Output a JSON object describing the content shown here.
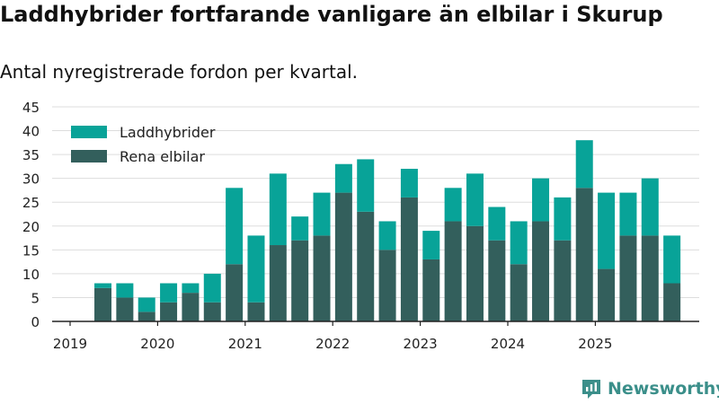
{
  "chart_data": {
    "type": "bar",
    "stacked": true,
    "title": "Laddhybrider fortfarande vanligare än elbilar i Skurup",
    "subtitle": "Antal nyregistrerade fordon per kvartal.",
    "xlabel": "",
    "ylabel": "",
    "ylim": [
      0,
      45
    ],
    "yticks": [
      0,
      5,
      10,
      15,
      20,
      25,
      30,
      35,
      40,
      45
    ],
    "xtick_labels": [
      "2019",
      "2020",
      "2021",
      "2022",
      "2023",
      "2024",
      "2025"
    ],
    "grid": true,
    "legend_position": "top-left",
    "categories": [
      "2019 Q2",
      "2019 Q3",
      "2019 Q4",
      "2020 Q1",
      "2020 Q2",
      "2020 Q3",
      "2020 Q4",
      "2021 Q1",
      "2021 Q2",
      "2021 Q3",
      "2021 Q4",
      "2022 Q1",
      "2022 Q2",
      "2022 Q3",
      "2022 Q4",
      "2023 Q1",
      "2023 Q2",
      "2023 Q3",
      "2023 Q4",
      "2024 Q1",
      "2024 Q2",
      "2024 Q3",
      "2024 Q4",
      "2025 Q1",
      "2025 Q2",
      "2025 Q3",
      "2025 Q4"
    ],
    "series": [
      {
        "name": "Rena elbilar",
        "color": "#335f5c",
        "values": [
          7,
          5,
          2,
          4,
          6,
          4,
          12,
          4,
          16,
          17,
          18,
          27,
          23,
          15,
          26,
          13,
          21,
          20,
          17,
          12,
          21,
          17,
          28,
          11,
          18,
          18,
          8
        ]
      },
      {
        "name": "Laddhybrider",
        "color": "#08a398",
        "values": [
          1,
          3,
          3,
          4,
          2,
          6,
          16,
          14,
          15,
          5,
          9,
          6,
          11,
          6,
          6,
          6,
          7,
          11,
          7,
          9,
          9,
          9,
          10,
          16,
          9,
          12,
          10
        ]
      }
    ]
  },
  "branding": {
    "name": "Newsworthy",
    "color": "#3b8f8a"
  }
}
